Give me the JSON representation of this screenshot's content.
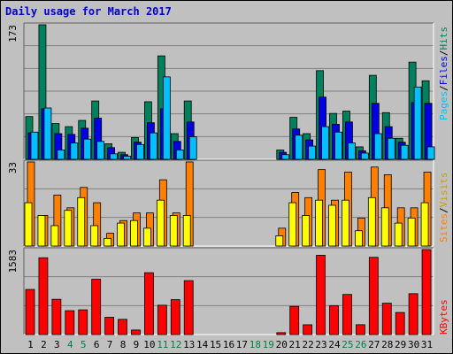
{
  "title": "Daily usage for March 2017",
  "colors": {
    "hits": "#00805c",
    "files": "#0000e6",
    "pages": "#00c0ff",
    "visits": "#ff8000",
    "sites": "#ffff00",
    "kbytes": "#ff0000",
    "weekday_label": "#000000",
    "weekend_label": "#008040",
    "title": "#0000cc"
  },
  "legend": {
    "top": {
      "pages": "Pages",
      "files": "Files",
      "hits": "Hits",
      "sep": "/"
    },
    "middle": {
      "sites": "Sites",
      "visits": "Visits",
      "sep": "/"
    },
    "bottom": {
      "kbytes": "KBytes"
    }
  },
  "chart_data": [
    {
      "type": "bar",
      "panel": "hits-files-pages",
      "axis_max_label": "173",
      "ylim": [
        0,
        173
      ],
      "categories": [
        "1",
        "2",
        "3",
        "4",
        "5",
        "6",
        "7",
        "8",
        "9",
        "10",
        "11",
        "12",
        "13",
        "14",
        "15",
        "16",
        "17",
        "18",
        "19",
        "20",
        "21",
        "22",
        "23",
        "24",
        "25",
        "26",
        "27",
        "28",
        "29",
        "30",
        "31"
      ],
      "weekend_days": [
        "4",
        "5",
        "11",
        "12",
        "18",
        "19",
        "25",
        "26"
      ],
      "series": [
        {
          "name": "Hits",
          "values": [
            55,
            173,
            46,
            42,
            50,
            75,
            20,
            9,
            28,
            74,
            133,
            33,
            75,
            0,
            0,
            0,
            0,
            0,
            0,
            12,
            54,
            33,
            114,
            59,
            62,
            16,
            108,
            60,
            27,
            125,
            101
          ]
        },
        {
          "name": "Files",
          "values": [
            34,
            65,
            33,
            32,
            40,
            53,
            15,
            6,
            22,
            47,
            65,
            23,
            48,
            0,
            0,
            0,
            0,
            0,
            0,
            9,
            39,
            25,
            80,
            45,
            48,
            11,
            72,
            42,
            22,
            73,
            72
          ]
        },
        {
          "name": "Pages",
          "values": [
            35,
            66,
            12,
            21,
            26,
            23,
            7,
            4,
            19,
            34,
            106,
            12,
            29,
            0,
            0,
            0,
            0,
            0,
            0,
            6,
            31,
            17,
            42,
            35,
            21,
            8,
            33,
            27,
            18,
            93,
            16
          ]
        }
      ]
    },
    {
      "type": "bar",
      "panel": "visits-sites",
      "axis_max_label": "33",
      "ylim": [
        0,
        33
      ],
      "categories": [
        "1",
        "2",
        "3",
        "4",
        "5",
        "6",
        "7",
        "8",
        "9",
        "10",
        "11",
        "12",
        "13",
        "14",
        "15",
        "16",
        "17",
        "18",
        "19",
        "20",
        "21",
        "22",
        "23",
        "24",
        "25",
        "26",
        "27",
        "28",
        "29",
        "30",
        "31"
      ],
      "series": [
        {
          "name": "Visits",
          "values": [
            33,
            12,
            20,
            15,
            23,
            17,
            5,
            10,
            13,
            13,
            26,
            13,
            33,
            0,
            0,
            0,
            0,
            0,
            0,
            7,
            21,
            19,
            30,
            18,
            29,
            11,
            31,
            28,
            15,
            15,
            29
          ]
        },
        {
          "name": "Sites",
          "values": [
            17,
            12,
            8,
            14,
            19,
            8,
            3,
            9,
            10,
            7,
            18,
            12,
            12,
            0,
            0,
            0,
            0,
            0,
            0,
            4,
            17,
            12,
            18,
            16,
            18,
            6,
            19,
            15,
            9,
            11,
            17
          ]
        }
      ]
    },
    {
      "type": "bar",
      "panel": "kbytes",
      "axis_max_label": "1583",
      "ylim": [
        0,
        1583
      ],
      "categories": [
        "1",
        "2",
        "3",
        "4",
        "5",
        "6",
        "7",
        "8",
        "9",
        "10",
        "11",
        "12",
        "13",
        "14",
        "15",
        "16",
        "17",
        "18",
        "19",
        "20",
        "21",
        "22",
        "23",
        "24",
        "25",
        "26",
        "27",
        "28",
        "29",
        "30",
        "31"
      ],
      "series": [
        {
          "name": "KBytes",
          "values": [
            840,
            1430,
            657,
            444,
            460,
            1030,
            321,
            283,
            84,
            1152,
            546,
            650,
            1004,
            0,
            0,
            0,
            0,
            0,
            0,
            35,
            525,
            182,
            1477,
            539,
            747,
            183,
            1439,
            584,
            411,
            761,
            1583
          ]
        }
      ]
    }
  ]
}
